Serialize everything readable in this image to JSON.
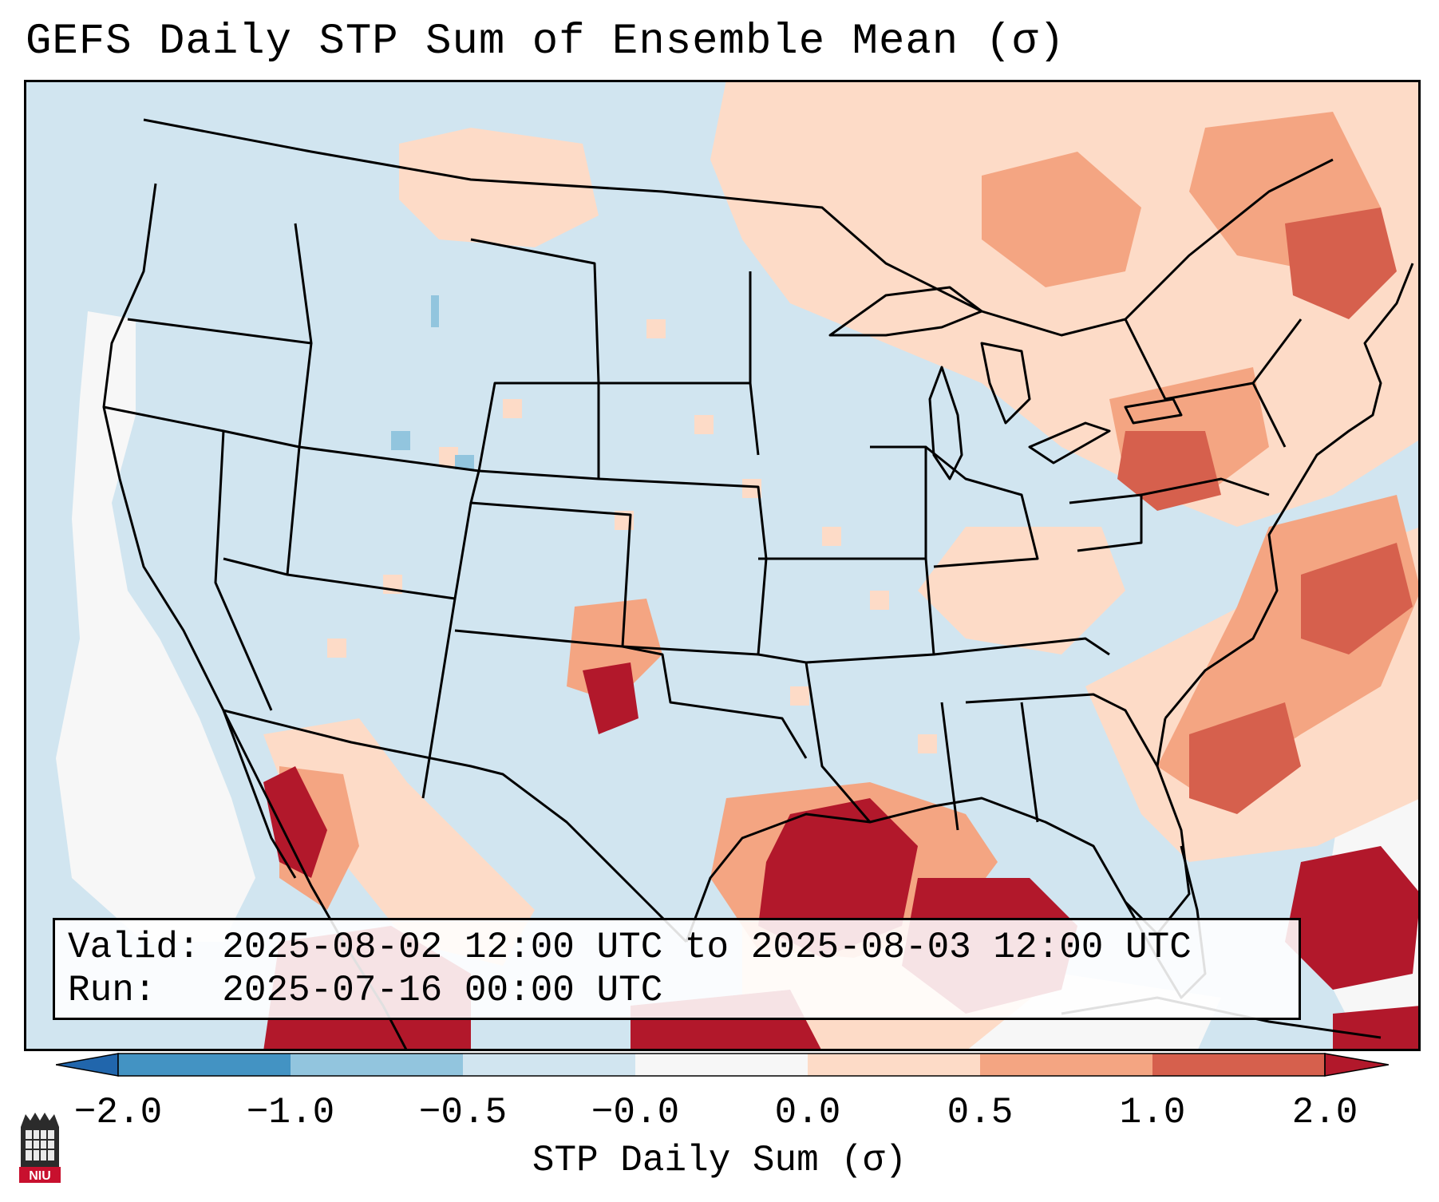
{
  "title": "GEFS Daily STP Sum of Ensemble Mean (σ)",
  "valid_line": "Valid: 2025-08-02 12:00 UTC to 2025-08-03 12:00 UTC",
  "run_line": "Run:   2025-07-16 00:00 UTC",
  "colorbar": {
    "label": "STP Daily Sum (σ)",
    "ticks": [
      "−2.0",
      "−1.0",
      "−0.5",
      "−0.0",
      "0.0",
      "0.5",
      "1.0",
      "2.0"
    ],
    "bin_colors": [
      "#4393c3",
      "#92c5de",
      "#d1e5f0",
      "#f7f7f7",
      "#fddbc7",
      "#f4a582",
      "#d6604d"
    ],
    "under_color": "#2166ac",
    "over_color": "#b2182b"
  },
  "map": {
    "projection": "Lambert Conformal",
    "region": "CONUS",
    "ocean_color": "#d1e5f0"
  },
  "logo": {
    "text": "NIU",
    "icon": "university-tower-icon"
  }
}
